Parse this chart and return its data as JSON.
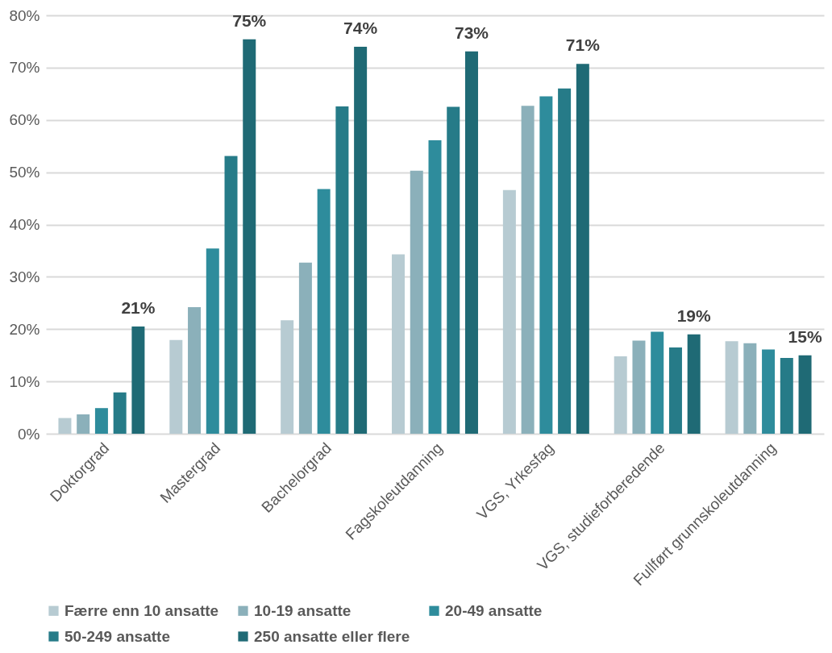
{
  "chart_data": {
    "type": "bar",
    "categories": [
      "Doktorgrad",
      "Mastergrad",
      "Bachelorgrad",
      "Fagskoleutdanning",
      "VGS, Yrkesfag",
      "VGS, studieforberedende",
      "Fullført grunnskoleutdanning"
    ],
    "series": [
      {
        "name": "Færre enn 10 ansatte",
        "color": "#b7cbd2",
        "values": [
          3.0,
          17.9,
          21.7,
          34.3,
          46.6,
          14.8,
          17.7
        ]
      },
      {
        "name": "10-19 ansatte",
        "color": "#8bb0ba",
        "values": [
          3.7,
          24.2,
          32.7,
          50.3,
          62.7,
          17.8,
          17.3
        ]
      },
      {
        "name": "20-49 ansatte",
        "color": "#2e8c9c",
        "values": [
          4.9,
          35.4,
          46.8,
          56.1,
          64.5,
          19.5,
          16.1
        ]
      },
      {
        "name": "50-249 ansatte",
        "color": "#267b88",
        "values": [
          7.9,
          53.1,
          62.6,
          62.5,
          66.0,
          16.5,
          14.5
        ]
      },
      {
        "name": "250 ansatte eller flere",
        "color": "#1f6a75",
        "values": [
          20.5,
          75.4,
          74.0,
          73.1,
          70.7,
          19.0,
          15.0
        ],
        "value_labels": [
          "21%",
          "75%",
          "74%",
          "73%",
          "71%",
          "19%",
          "15%"
        ]
      }
    ],
    "ylim": [
      0,
      80
    ],
    "yticks": [
      {
        "value": 0,
        "label": "0%"
      },
      {
        "value": 10,
        "label": "10%"
      },
      {
        "value": 20,
        "label": "20%"
      },
      {
        "value": 30,
        "label": "30%"
      },
      {
        "value": 40,
        "label": "40%"
      },
      {
        "value": 50,
        "label": "50%"
      },
      {
        "value": 60,
        "label": "60%"
      },
      {
        "value": 70,
        "label": "70%"
      },
      {
        "value": 80,
        "label": "80%"
      }
    ],
    "grid": "y",
    "legend": "bottom"
  }
}
